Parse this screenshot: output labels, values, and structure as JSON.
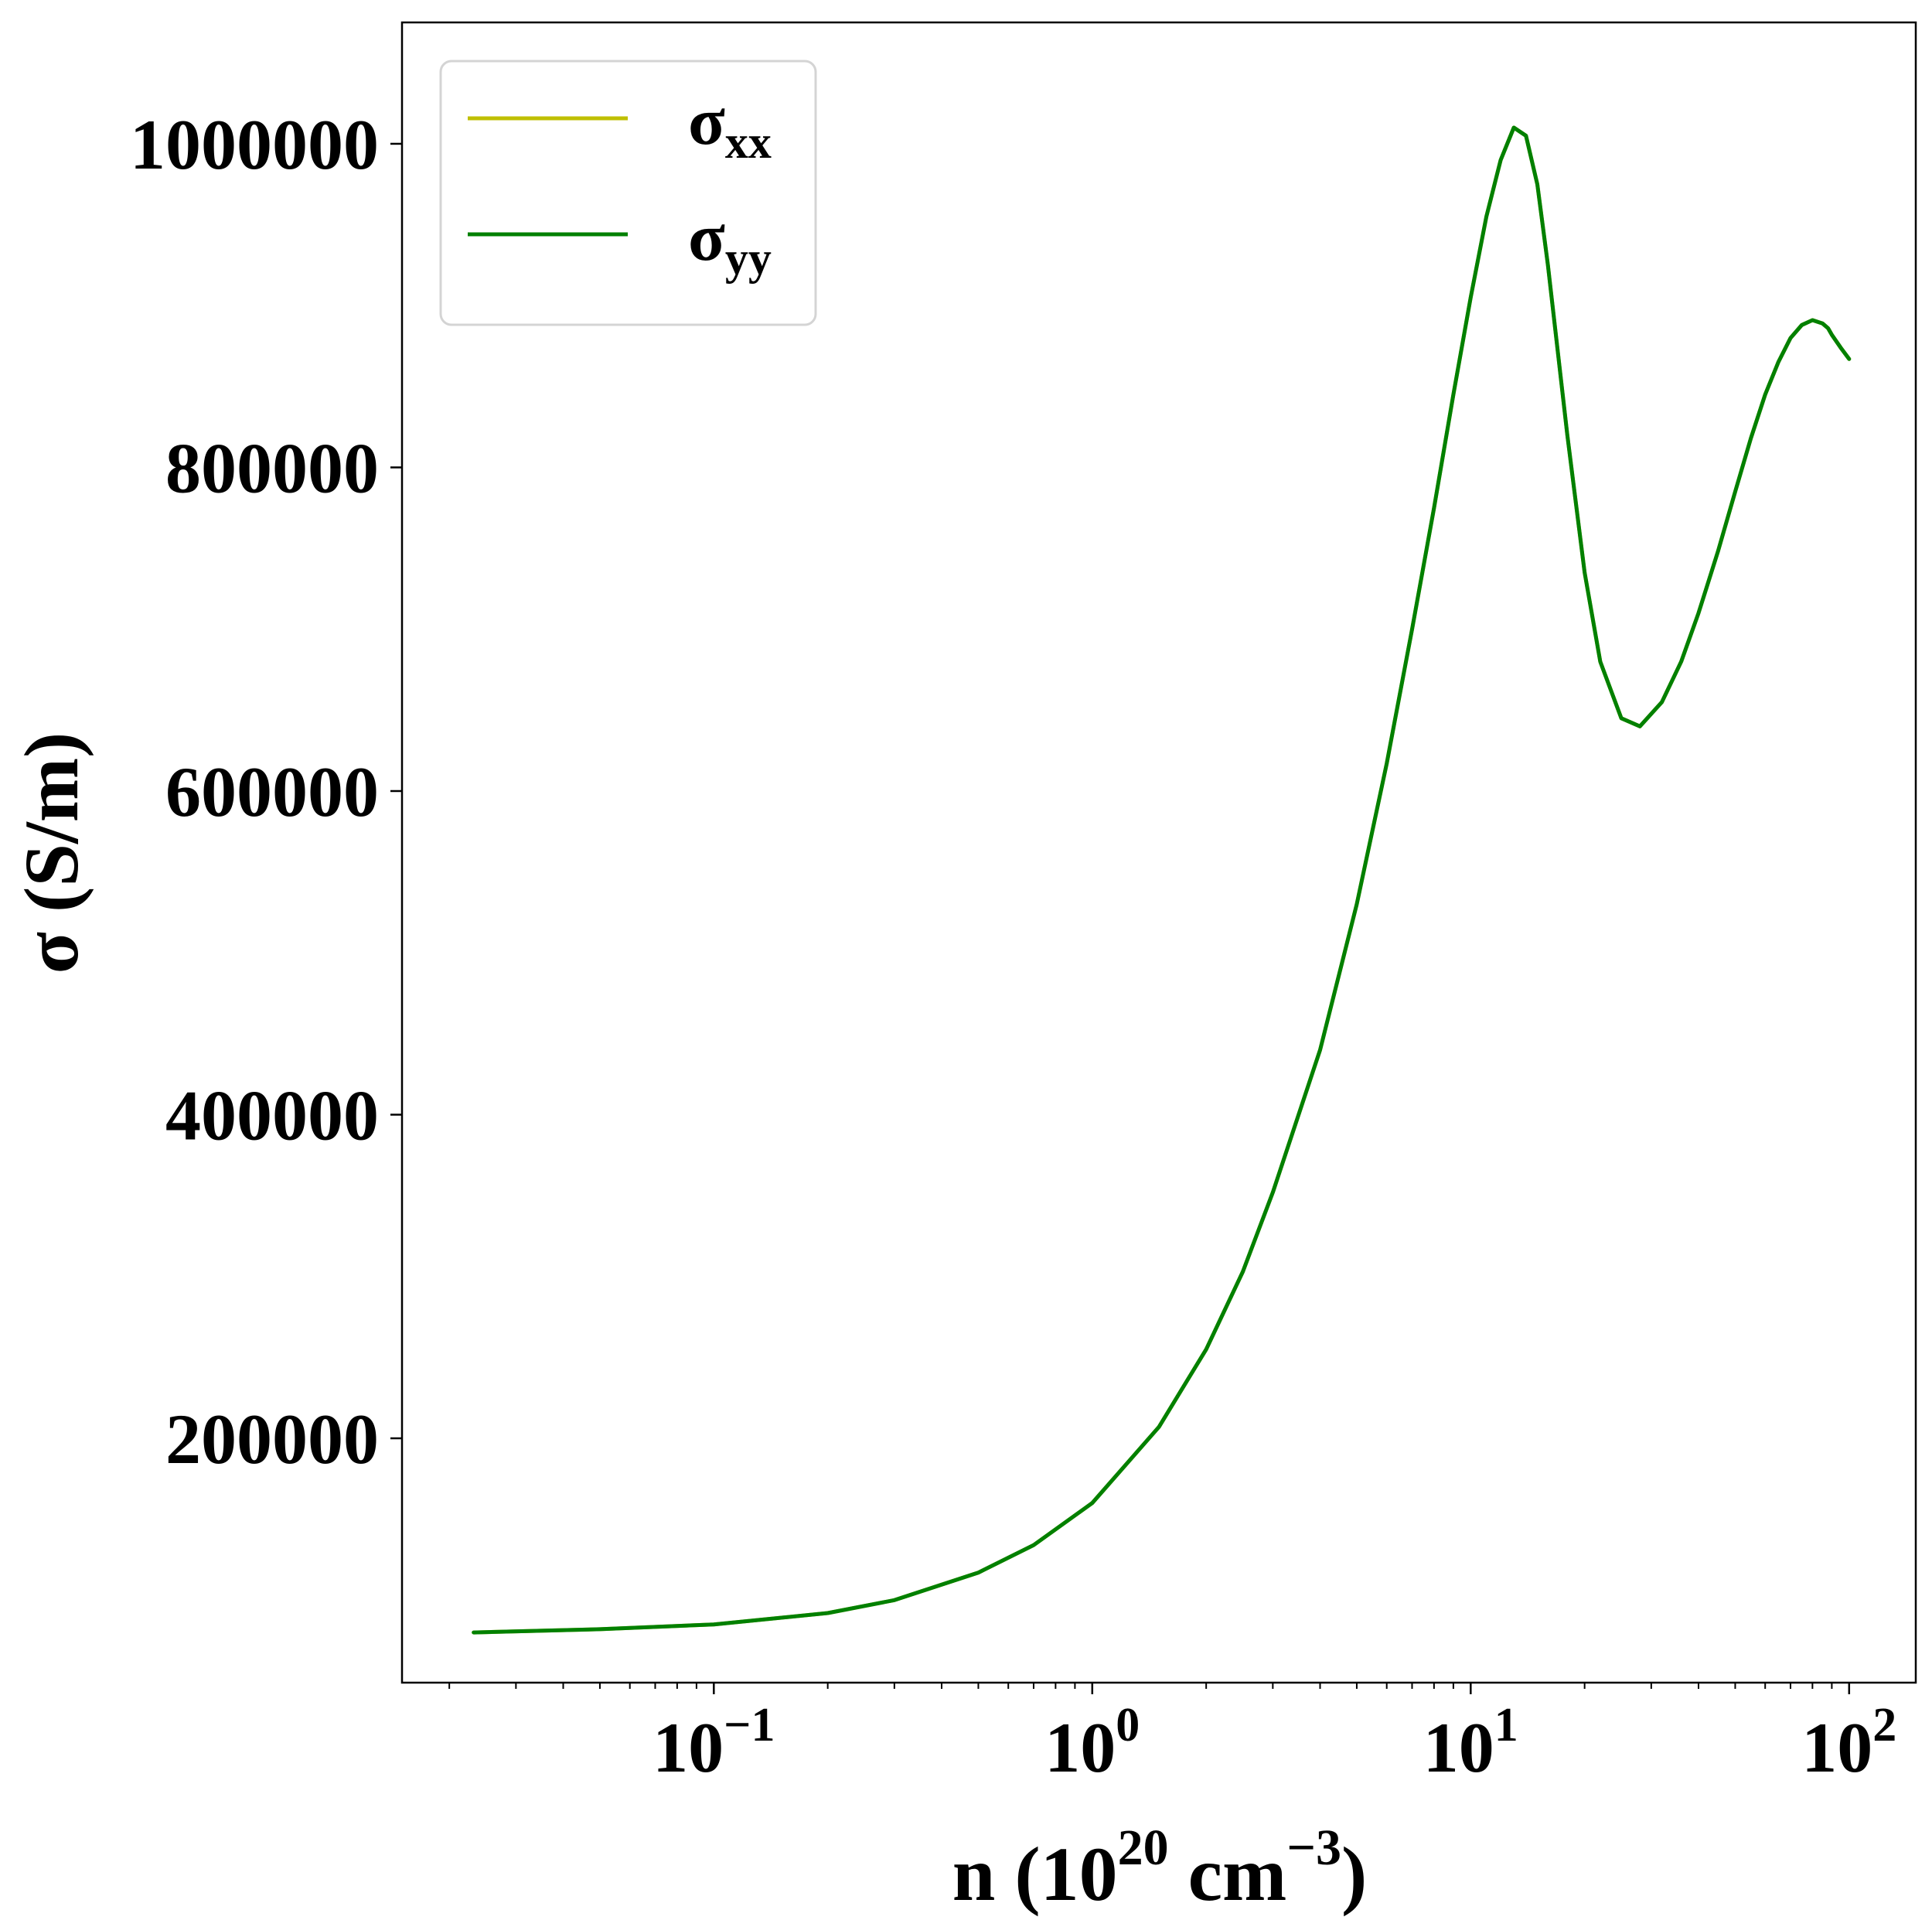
{
  "chart_data": {
    "type": "line",
    "xscale": "log",
    "xlim": [
      0.015,
      150
    ],
    "ylim": [
      49000,
      1075000
    ],
    "x_major_ticks": [
      {
        "value": 0.1,
        "base": "10",
        "exp": "−1"
      },
      {
        "value": 1,
        "base": "10",
        "exp": "0"
      },
      {
        "value": 10,
        "base": "10",
        "exp": "1"
      },
      {
        "value": 100,
        "base": "10",
        "exp": "2"
      }
    ],
    "y_ticks": [
      {
        "value": 200000,
        "label": "200000"
      },
      {
        "value": 400000,
        "label": "400000"
      },
      {
        "value": 600000,
        "label": "600000"
      },
      {
        "value": 800000,
        "label": "800000"
      },
      {
        "value": 1000000,
        "label": "1000000"
      }
    ],
    "xlabel": {
      "main": "n (10",
      "sup1": "20",
      "mid": " cm",
      "sup2": "−3",
      "end": ")"
    },
    "ylabel": "σ (S/m)",
    "legend": {
      "placement": "upper-left",
      "entries": [
        {
          "symbol": "σ",
          "sub": "xx",
          "color": "#bfbf00"
        },
        {
          "symbol": "σ",
          "sub": "yy",
          "color": "#008000"
        }
      ]
    },
    "series": [
      {
        "key": "sigma_xx",
        "color": "#bfbf00",
        "x": [
          0.0232,
          0.05,
          0.1,
          0.2,
          0.3,
          0.5,
          0.7,
          1.0,
          1.5,
          2.0,
          2.5,
          3.0,
          4.0,
          5.0,
          6.0,
          7.0,
          8.0,
          9.0,
          10.0,
          11.0,
          12.0,
          13.0,
          14.0,
          15.0,
          16.0,
          18.0,
          20.0,
          22.0,
          25.0,
          28.0,
          32.0,
          36.0,
          40.0,
          45.0,
          50.0,
          55.0,
          60.0,
          65.0,
          70.0,
          75.0,
          80.0,
          85.0,
          88.0,
          90.0,
          95.0,
          100.0
        ],
        "y": [
          80000,
          82000,
          85000,
          92000,
          100000,
          117000,
          134000,
          160000,
          207000,
          255000,
          303000,
          352000,
          440000,
          530000,
          617000,
          700000,
          775000,
          845000,
          905000,
          955000,
          990000,
          1010000,
          1005000,
          975000,
          925000,
          820000,
          735000,
          680000,
          645000,
          640000,
          655000,
          680000,
          710000,
          748000,
          785000,
          818000,
          845000,
          865000,
          880000,
          888000,
          891000,
          889000,
          886000,
          882000,
          874000,
          867000
        ]
      },
      {
        "key": "sigma_yy",
        "color": "#008000",
        "x": [
          0.0232,
          0.05,
          0.1,
          0.2,
          0.3,
          0.5,
          0.7,
          1.0,
          1.5,
          2.0,
          2.5,
          3.0,
          4.0,
          5.0,
          6.0,
          7.0,
          8.0,
          9.0,
          10.0,
          11.0,
          12.0,
          13.0,
          14.0,
          15.0,
          16.0,
          18.0,
          20.0,
          22.0,
          25.0,
          28.0,
          32.0,
          36.0,
          40.0,
          45.0,
          50.0,
          55.0,
          60.0,
          65.0,
          70.0,
          75.0,
          80.0,
          85.0,
          88.0,
          90.0,
          95.0,
          100.0
        ],
        "y": [
          80000,
          82000,
          85000,
          92000,
          100000,
          117000,
          134000,
          160000,
          207000,
          255000,
          303000,
          352000,
          440000,
          530000,
          617000,
          700000,
          775000,
          845000,
          905000,
          955000,
          990000,
          1010000,
          1005000,
          975000,
          925000,
          820000,
          735000,
          680000,
          645000,
          640000,
          655000,
          680000,
          710000,
          748000,
          785000,
          818000,
          845000,
          865000,
          880000,
          888000,
          891000,
          889000,
          886000,
          882000,
          874000,
          867000
        ]
      }
    ]
  }
}
